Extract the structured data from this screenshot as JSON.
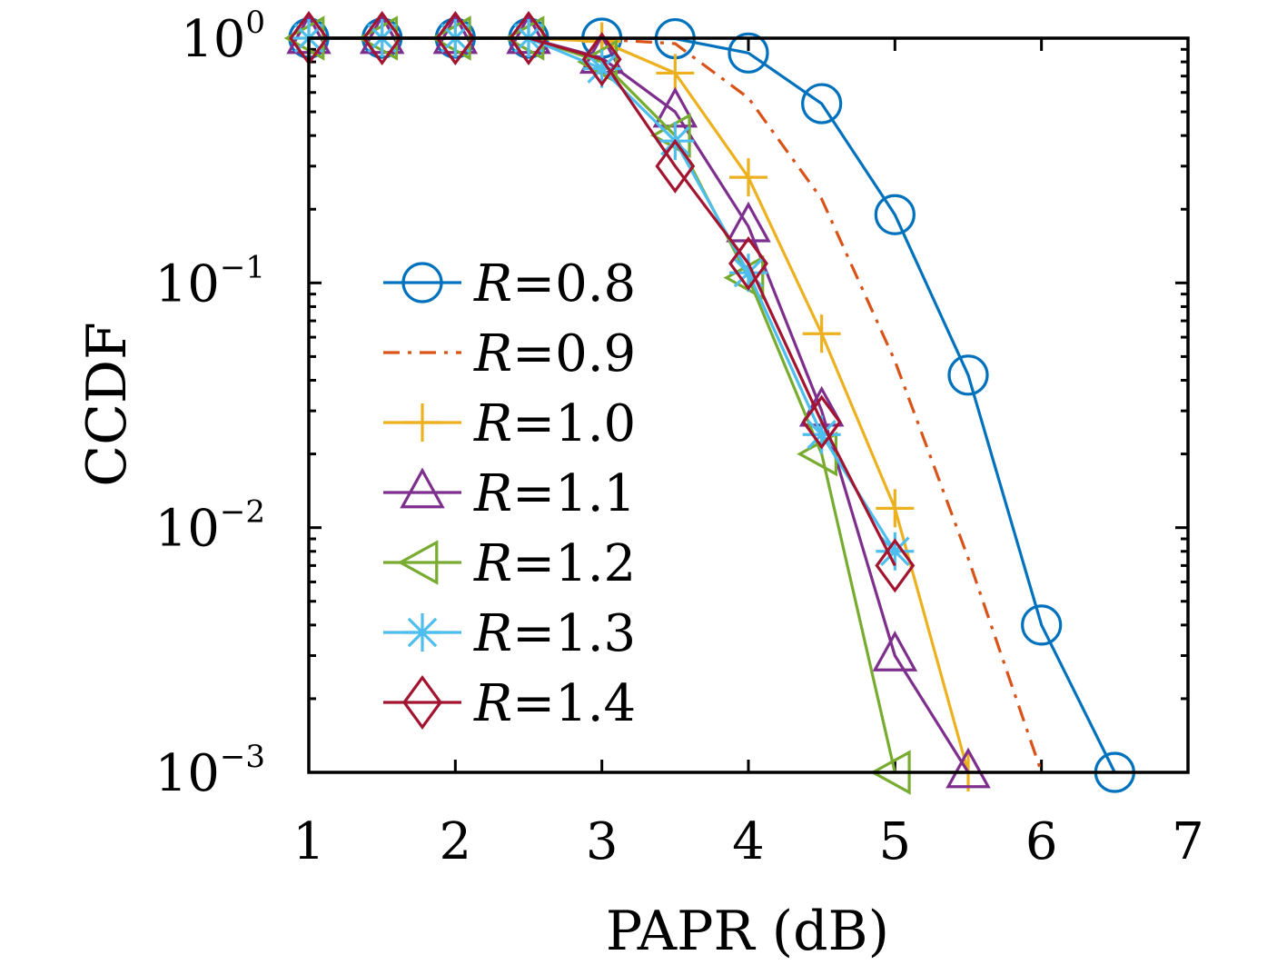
{
  "chart_data": {
    "type": "line",
    "title": "",
    "xlabel": "PAPR (dB)",
    "ylabel": "CCDF",
    "xlim": [
      1,
      7
    ],
    "ylim": [
      0.001,
      1
    ],
    "yscale": "log",
    "grid": false,
    "legend_position": "center-left",
    "x_ticks": [
      1,
      2,
      3,
      4,
      5,
      6,
      7
    ],
    "x_tick_labels": [
      "1",
      "2",
      "3",
      "4",
      "5",
      "6",
      "7"
    ],
    "y_ticks": [
      1,
      0.1,
      0.01,
      0.001
    ],
    "y_tick_labels": [
      {
        "base": "10",
        "exp": "0"
      },
      {
        "base": "10",
        "exp": "−1"
      },
      {
        "base": "10",
        "exp": "−2"
      },
      {
        "base": "10",
        "exp": "−3"
      }
    ],
    "series": [
      {
        "name": "R=0.8",
        "legend_prefix": "R",
        "legend_value": "=0.8",
        "color": "#0072BD",
        "marker": "circle",
        "dash": "solid",
        "x": [
          1,
          1.5,
          2,
          2.5,
          3,
          3.5,
          4,
          4.5,
          5,
          5.5,
          6,
          6.5
        ],
        "y": [
          1,
          1,
          1,
          1,
          1,
          0.995,
          0.87,
          0.54,
          0.19,
          0.042,
          0.004,
          0.001
        ]
      },
      {
        "name": "R=0.9",
        "legend_prefix": "R",
        "legend_value": "=0.9",
        "color": "#D95319",
        "marker": "none",
        "dash": "dashdot",
        "x": [
          1,
          1.5,
          2,
          2.5,
          3,
          3.5,
          4,
          4.5,
          5,
          5.5,
          6
        ],
        "y": [
          1,
          1,
          1,
          1,
          0.99,
          0.95,
          0.57,
          0.22,
          0.048,
          0.0075,
          0.001
        ]
      },
      {
        "name": "R=1.0",
        "legend_prefix": "R",
        "legend_value": "=1.0",
        "color": "#EDB120",
        "marker": "plus",
        "dash": "solid",
        "x": [
          1,
          1.5,
          2,
          2.5,
          3,
          3.5,
          4,
          4.5,
          5,
          5.5
        ],
        "y": [
          1,
          1,
          1,
          1,
          0.97,
          0.72,
          0.27,
          0.062,
          0.012,
          0.001
        ]
      },
      {
        "name": "R=1.1",
        "legend_prefix": "R",
        "legend_value": "=1.1",
        "color": "#7E2F8E",
        "marker": "triangle-up",
        "dash": "solid",
        "x": [
          1,
          1.5,
          2,
          2.5,
          3,
          3.5,
          4,
          4.5,
          5,
          5.5
        ],
        "y": [
          1,
          1,
          1,
          1,
          0.83,
          0.5,
          0.17,
          0.03,
          0.003,
          0.001
        ]
      },
      {
        "name": "R=1.2",
        "legend_prefix": "R",
        "legend_value": "=1.2",
        "color": "#77AC30",
        "marker": "triangle-left",
        "dash": "solid",
        "x": [
          1,
          1.5,
          2,
          2.5,
          3,
          3.5,
          4,
          4.5,
          5
        ],
        "y": [
          1,
          1,
          1,
          1,
          0.8,
          0.4,
          0.105,
          0.02,
          0.001
        ]
      },
      {
        "name": "R=1.3",
        "legend_prefix": "R",
        "legend_value": "=1.3",
        "color": "#4DBEEE",
        "marker": "asterisk",
        "dash": "solid",
        "x": [
          1,
          1.5,
          2,
          2.5,
          3,
          3.5,
          4,
          4.5,
          5
        ],
        "y": [
          1,
          1,
          1,
          1,
          0.75,
          0.38,
          0.11,
          0.024,
          0.008
        ]
      },
      {
        "name": "R=1.4",
        "legend_prefix": "R",
        "legend_value": "=1.4",
        "color": "#A2142F",
        "marker": "diamond",
        "dash": "solid",
        "x": [
          1,
          1.5,
          2,
          2.5,
          3,
          3.5,
          4,
          4.5,
          5
        ],
        "y": [
          1,
          1,
          1,
          1,
          0.82,
          0.3,
          0.12,
          0.027,
          0.007
        ]
      }
    ]
  }
}
